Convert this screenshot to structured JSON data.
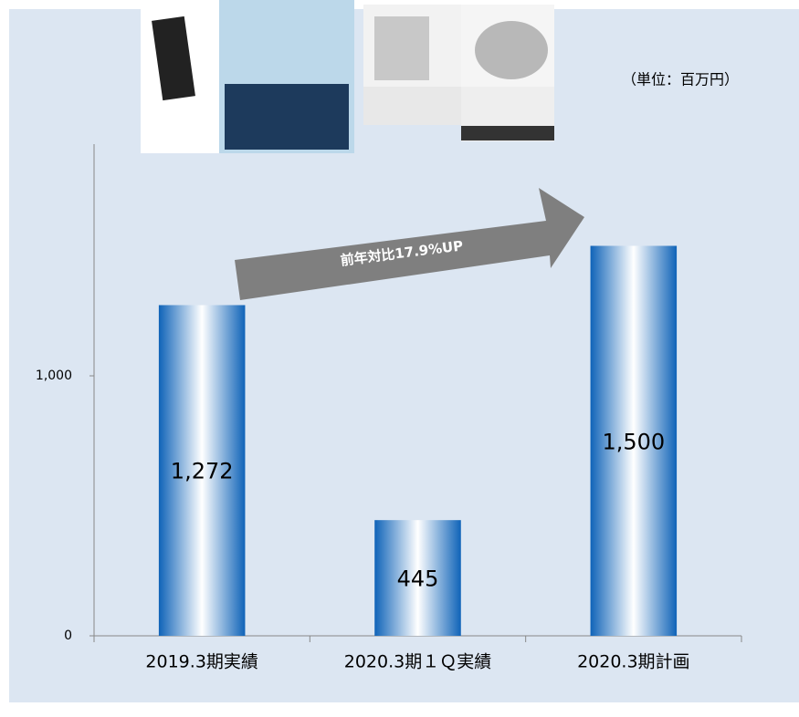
{
  "chart_data": {
    "type": "bar",
    "unit_note": "（単位：百万円）",
    "annotation": "前年対比17.9%UP",
    "categories": [
      "2019.3期実績",
      "2020.3期１Ｑ実績",
      "2020.3期計画"
    ],
    "values": [
      1272,
      445,
      1500
    ],
    "value_labels": [
      "1,272",
      "445",
      "1,500"
    ],
    "color": "#1a6fc4",
    "ylim": [
      0,
      1900
    ],
    "yticks": [
      0,
      {
        "value": 1000,
        "label": "1,000"
      }
    ],
    "grid": false
  }
}
